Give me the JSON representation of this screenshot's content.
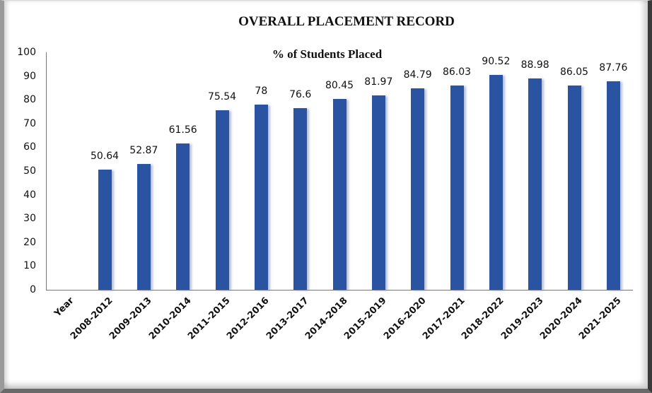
{
  "chart_data": {
    "type": "bar",
    "title": "OVERALL PLACEMENT RECORD",
    "subtitle": "% of  Students Placed",
    "xlabel": "",
    "ylabel": "",
    "ylim": [
      0,
      100
    ],
    "yticks": [
      0,
      10,
      20,
      30,
      40,
      50,
      60,
      70,
      80,
      90,
      100
    ],
    "grid": false,
    "legend": null,
    "categories": [
      "Year",
      "2008-2012",
      "2009-2013",
      "2010-2014",
      "2011-2015",
      "2012-2016",
      "2013-2017",
      "2014-2018",
      "2015-2019",
      "2016-2020",
      "2017-2021",
      "2018-2022",
      "2019-2023",
      "2020-2024",
      "2021-2025"
    ],
    "values": [
      null,
      50.64,
      52.87,
      61.56,
      75.54,
      78,
      76.6,
      80.45,
      81.97,
      84.79,
      86.03,
      90.52,
      88.98,
      86.05,
      87.76
    ],
    "value_labels": [
      "",
      "50.64",
      "52.87",
      "61.56",
      "75.54",
      "78",
      "76.6",
      "80.45",
      "81.97",
      "84.79",
      "86.03",
      "90.52",
      "88.98",
      "86.05",
      "87.76"
    ],
    "bar_color": "#2a54a1"
  }
}
